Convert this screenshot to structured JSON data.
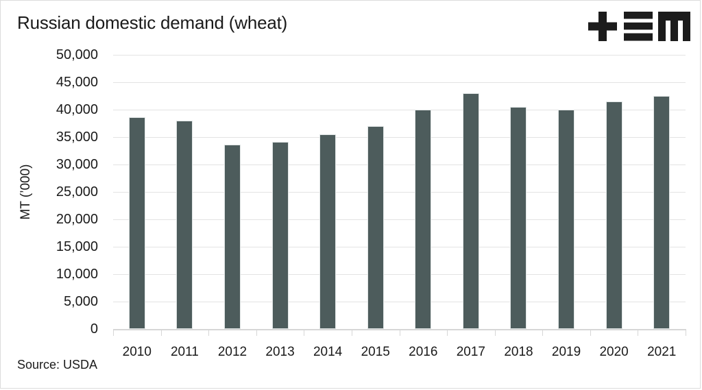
{
  "header": {
    "title": "Russian domestic demand (wheat)"
  },
  "logo": {
    "name": "tem-logo",
    "color": "#1c1c1c"
  },
  "footer": {
    "source": "Source: USDA"
  },
  "colors": {
    "bar": "#4d5c5c",
    "bar_stroke": "#e0e5e5",
    "gridline": "#e3e3e3",
    "axis": "#d6d6d6",
    "text": "#1a1a1a",
    "background": "#ffffff"
  },
  "chart_data": {
    "type": "bar",
    "title": "Russian domestic demand (wheat)",
    "categories": [
      "2010",
      "2011",
      "2012",
      "2013",
      "2014",
      "2015",
      "2016",
      "2017",
      "2018",
      "2019",
      "2020",
      "2021"
    ],
    "values": [
      38600,
      38000,
      33600,
      34100,
      35500,
      37000,
      40000,
      43000,
      40500,
      40000,
      41500,
      42500
    ],
    "xlabel": "",
    "ylabel": "MT (’000)",
    "ylim": [
      0,
      50000
    ],
    "ytick_step": 5000,
    "grid": true,
    "legend_position": "none",
    "source": "Source: USDA",
    "bar_color": "#4d5c5c"
  }
}
